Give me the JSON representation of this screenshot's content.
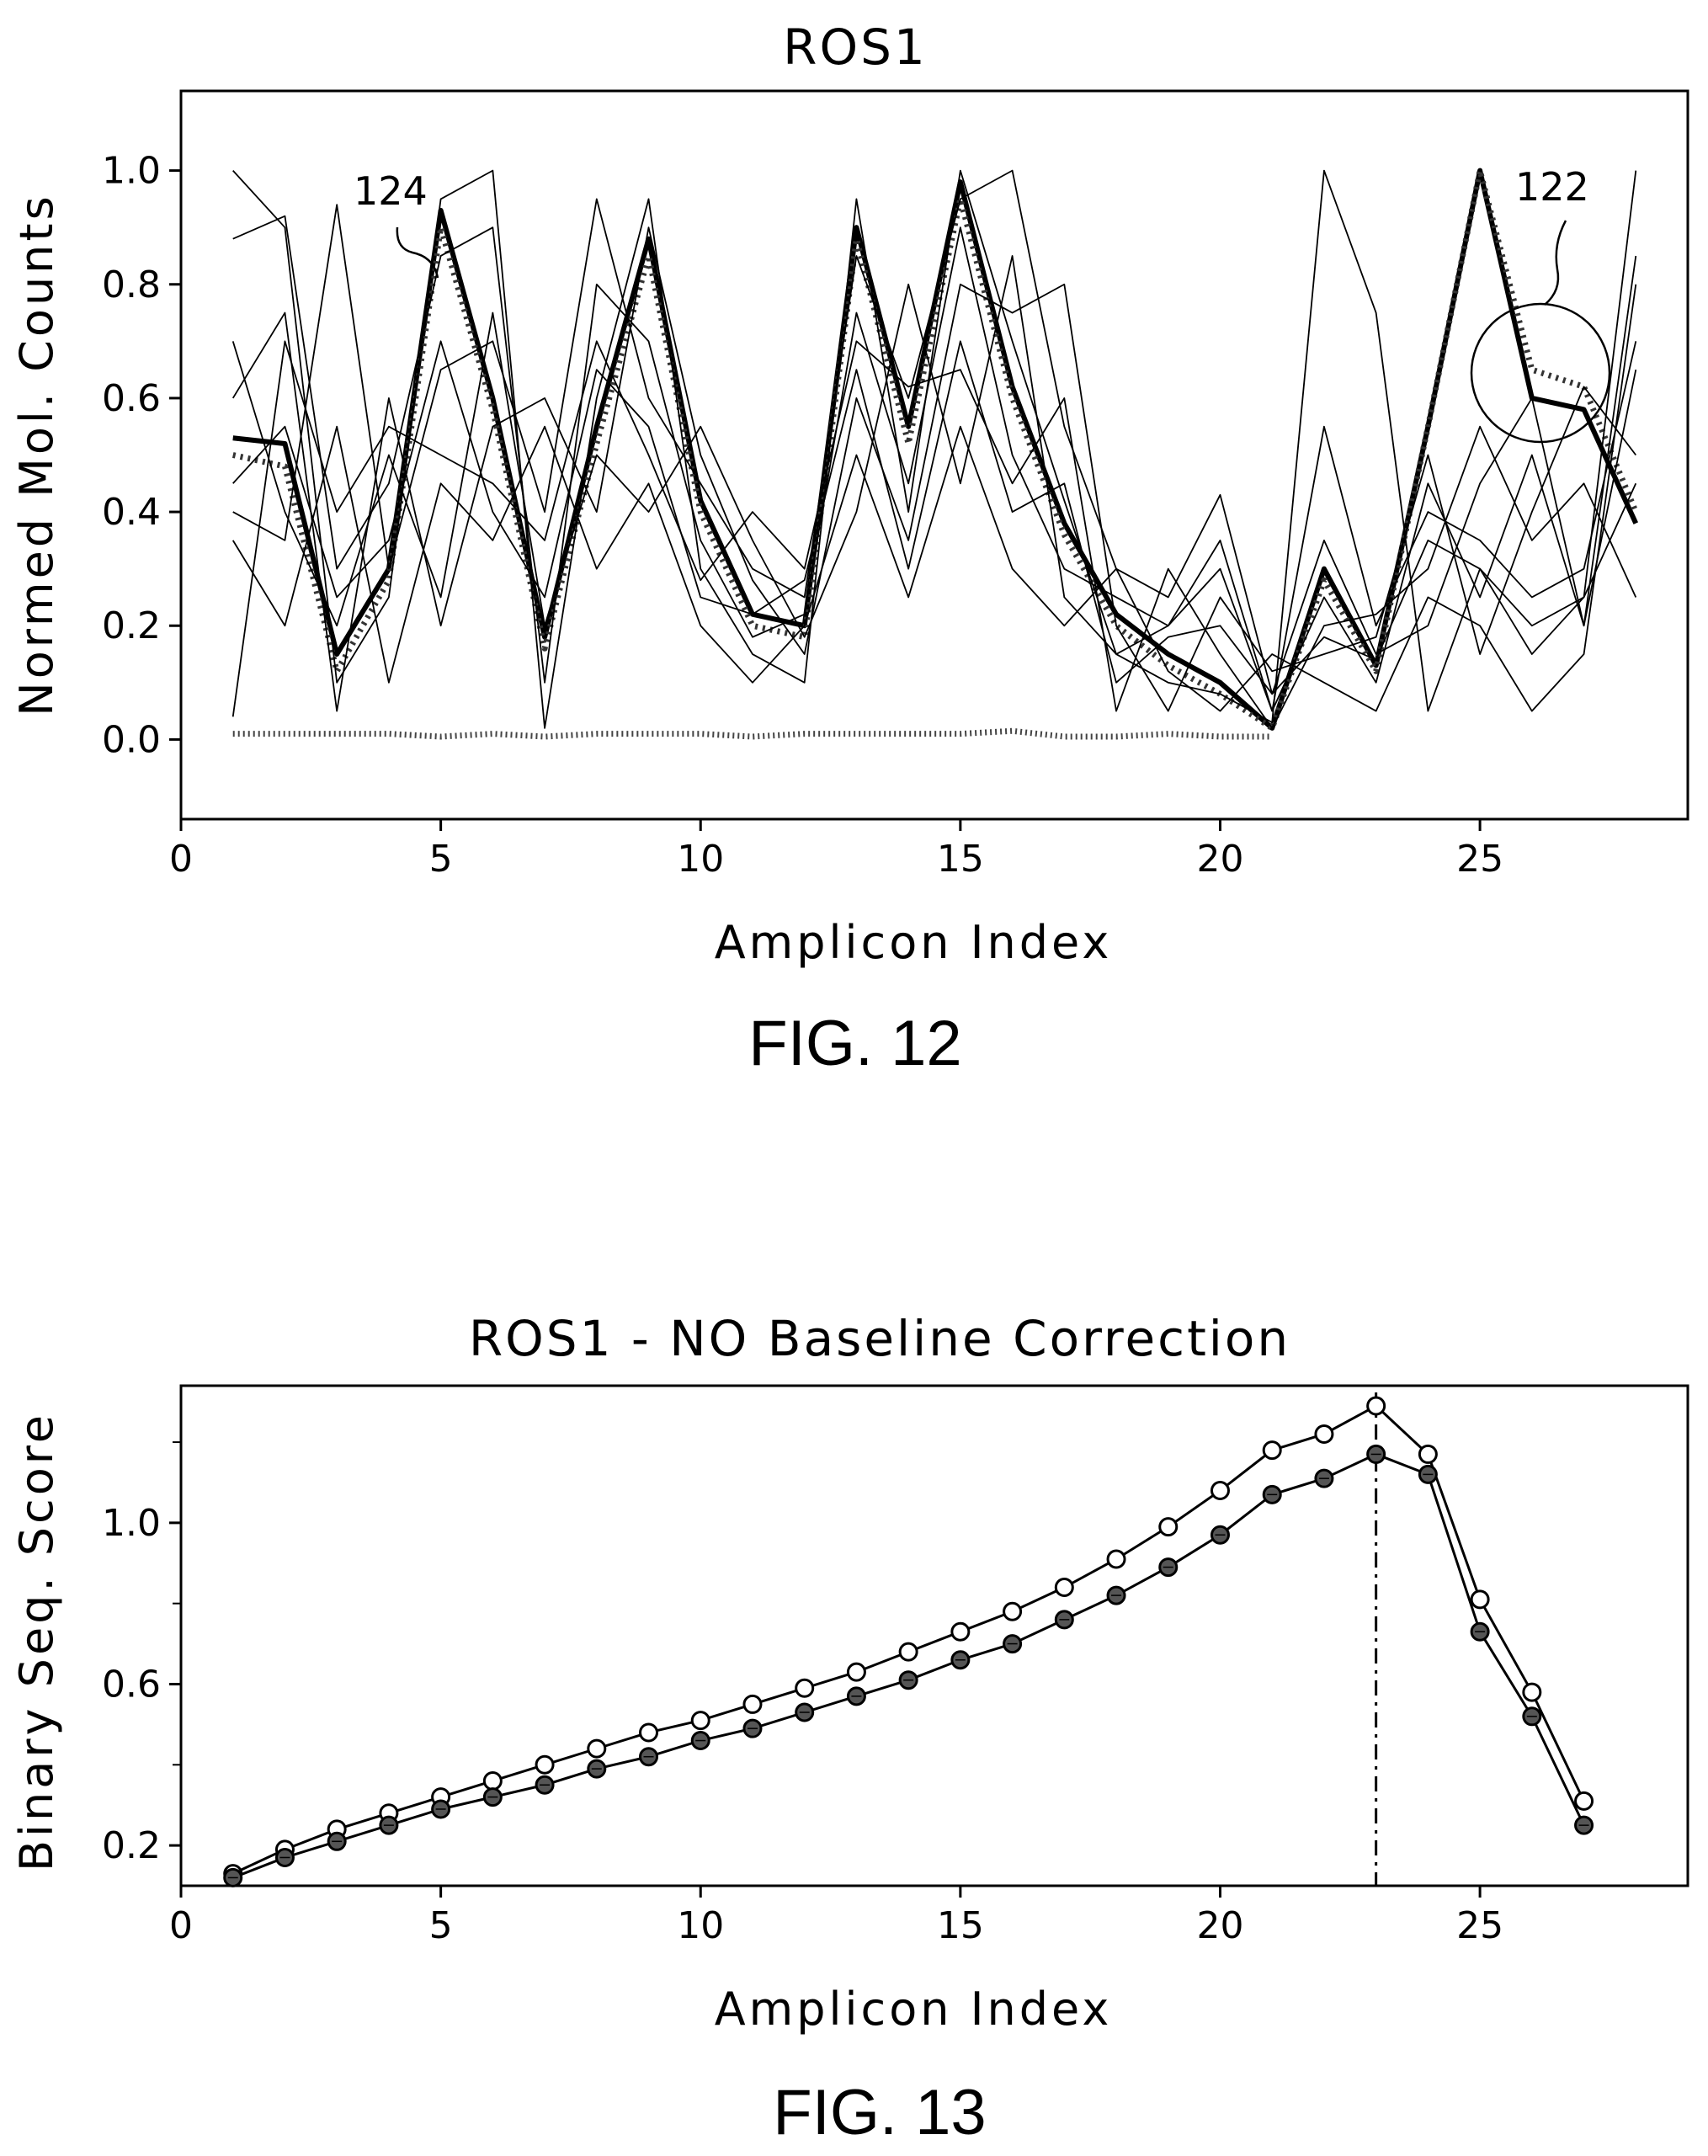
{
  "chart_data": [
    {
      "type": "line",
      "title": "ROS1",
      "xlabel": "Amplicon Index",
      "ylabel": "Normed Mol. Counts",
      "xlim": [
        0,
        29
      ],
      "ylim": [
        -0.14,
        1.14
      ],
      "xticks": [
        0,
        5,
        10,
        15,
        20,
        25
      ],
      "yticks": [
        0.0,
        0.2,
        0.4,
        0.6,
        0.8,
        1.0
      ],
      "grid": false,
      "caption": "FIG. 12",
      "annotations": [
        "124",
        "122"
      ],
      "series": [
        {
          "style": "thick",
          "x": [
            1,
            2,
            3,
            4,
            5,
            6,
            7,
            8,
            9,
            10,
            11,
            12,
            13,
            14,
            15,
            16,
            17,
            18,
            19,
            20,
            21,
            22,
            23,
            24,
            25,
            26,
            27,
            28
          ],
          "values": [
            0.53,
            0.52,
            0.15,
            0.3,
            0.93,
            0.6,
            0.18,
            0.55,
            0.88,
            0.42,
            0.22,
            0.2,
            0.9,
            0.55,
            0.98,
            0.62,
            0.38,
            0.22,
            0.15,
            0.1,
            0.02,
            0.3,
            0.13,
            0.55,
            1.0,
            0.6,
            0.58,
            0.38
          ]
        },
        {
          "style": "dotted",
          "x": [
            1,
            2,
            3,
            4,
            5,
            6,
            7,
            8,
            9,
            10,
            11,
            12,
            13,
            14,
            15,
            16,
            17,
            18,
            19,
            20,
            21,
            22,
            23,
            24,
            25,
            26,
            27,
            28
          ],
          "values": [
            0.5,
            0.48,
            0.12,
            0.28,
            0.9,
            0.58,
            0.16,
            0.52,
            0.85,
            0.4,
            0.2,
            0.18,
            0.88,
            0.52,
            0.95,
            0.6,
            0.36,
            0.2,
            0.13,
            0.08,
            0.02,
            0.28,
            0.12,
            0.55,
            1.0,
            0.65,
            0.62,
            0.4
          ]
        },
        {
          "style": "baseline",
          "x": [
            1,
            2,
            3,
            4,
            5,
            6,
            7,
            8,
            9,
            10,
            11,
            12,
            13,
            14,
            15,
            16,
            17,
            18,
            19,
            20,
            21
          ],
          "values": [
            0.01,
            0.01,
            0.01,
            0.01,
            0.005,
            0.01,
            0.005,
            0.01,
            0.01,
            0.01,
            0.005,
            0.01,
            0.01,
            0.01,
            0.01,
            0.015,
            0.005,
            0.005,
            0.01,
            0.005,
            0.005
          ]
        },
        {
          "style": "thin",
          "x": [
            1,
            2,
            3,
            4,
            5,
            6,
            7,
            8,
            9,
            10,
            11,
            12,
            13,
            14,
            15,
            16,
            17,
            18,
            19,
            20,
            21,
            22,
            23,
            24,
            25,
            26,
            27,
            28
          ],
          "values": [
            1.0,
            0.9,
            0.1,
            0.25,
            0.95,
            1.0,
            0.02,
            0.6,
            0.95,
            0.3,
            0.15,
            0.1,
            0.95,
            0.4,
            1.0,
            0.7,
            0.42,
            0.15,
            0.1,
            0.08,
            0.03,
            1.0,
            0.75,
            0.05,
            0.3,
            0.2,
            0.25,
            1.0
          ]
        },
        {
          "style": "thin",
          "x": [
            1,
            2,
            3,
            4,
            5,
            6,
            7,
            8,
            9,
            10,
            11,
            12,
            13,
            14,
            15,
            16,
            17,
            18,
            19,
            20,
            21,
            22,
            23,
            24,
            25,
            26,
            27,
            28
          ],
          "values": [
            0.88,
            0.92,
            0.3,
            0.45,
            0.85,
            0.9,
            0.1,
            0.8,
            0.7,
            0.35,
            0.18,
            0.22,
            0.75,
            0.45,
            0.9,
            0.5,
            0.3,
            0.25,
            0.2,
            0.3,
            0.05,
            0.55,
            0.2,
            0.4,
            0.35,
            0.25,
            0.3,
            0.7
          ]
        },
        {
          "style": "thin",
          "x": [
            1,
            2,
            3,
            4,
            5,
            6,
            7,
            8,
            9,
            10,
            11,
            12,
            13,
            14,
            15,
            16,
            17,
            18,
            19,
            20,
            21,
            22,
            23,
            24,
            25,
            26,
            27,
            28
          ],
          "values": [
            0.4,
            0.35,
            0.94,
            0.3,
            0.65,
            0.7,
            0.4,
            0.95,
            0.6,
            0.45,
            0.3,
            0.25,
            0.85,
            0.6,
            0.95,
            1.0,
            0.55,
            0.3,
            0.25,
            0.43,
            0.08,
            0.35,
            0.15,
            0.2,
            0.45,
            0.6,
            0.2,
            0.65
          ]
        },
        {
          "style": "thin",
          "x": [
            1,
            2,
            3,
            4,
            5,
            6,
            7,
            8,
            9,
            10,
            11,
            12,
            13,
            14,
            15,
            16,
            17,
            18,
            19,
            20,
            21,
            22,
            23,
            24,
            25,
            26,
            27,
            28
          ],
          "values": [
            0.6,
            0.75,
            0.05,
            0.6,
            0.2,
            0.55,
            0.6,
            0.4,
            0.9,
            0.5,
            0.28,
            0.15,
            0.6,
            0.35,
            0.8,
            0.75,
            0.8,
            0.2,
            0.05,
            0.25,
            0.12,
            0.15,
            0.18,
            0.5,
            0.15,
            0.4,
            0.62,
            0.5
          ]
        },
        {
          "style": "thin",
          "x": [
            1,
            2,
            3,
            4,
            5,
            6,
            7,
            8,
            9,
            10,
            11,
            12,
            13,
            14,
            15,
            16,
            17,
            18,
            19,
            20,
            21,
            22,
            23,
            24,
            25,
            26,
            27,
            28
          ],
          "values": [
            0.04,
            0.7,
            0.4,
            0.55,
            0.5,
            0.45,
            0.35,
            0.7,
            0.5,
            0.28,
            0.4,
            0.3,
            0.7,
            0.62,
            0.65,
            0.45,
            0.6,
            0.05,
            0.3,
            0.15,
            0.02,
            0.2,
            0.22,
            0.3,
            0.55,
            0.35,
            0.45,
            0.25
          ]
        },
        {
          "style": "thin",
          "x": [
            1,
            2,
            3,
            4,
            5,
            6,
            7,
            8,
            9,
            10,
            11,
            12,
            13,
            14,
            15,
            16,
            17,
            18,
            19,
            20,
            21,
            22,
            23,
            24,
            25,
            26,
            27,
            28
          ],
          "values": [
            0.35,
            0.2,
            0.55,
            0.1,
            0.45,
            0.35,
            0.55,
            0.3,
            0.45,
            0.2,
            0.1,
            0.2,
            0.5,
            0.25,
            0.55,
            0.3,
            0.2,
            0.3,
            0.12,
            0.05,
            0.15,
            0.1,
            0.05,
            0.25,
            0.2,
            0.05,
            0.15,
            0.8
          ]
        },
        {
          "style": "thin",
          "x": [
            1,
            2,
            3,
            4,
            5,
            6,
            7,
            8,
            9,
            10,
            11,
            12,
            13,
            14,
            15,
            16,
            17,
            18,
            19,
            20,
            21,
            22,
            23,
            24,
            25,
            26,
            27,
            28
          ],
          "values": [
            0.7,
            0.4,
            0.2,
            0.5,
            0.25,
            0.75,
            0.2,
            0.5,
            0.4,
            0.55,
            0.35,
            0.18,
            0.4,
            0.8,
            0.45,
            0.85,
            0.25,
            0.15,
            0.2,
            0.35,
            0.05,
            0.25,
            0.1,
            0.45,
            0.25,
            0.5,
            0.2,
            0.85
          ]
        },
        {
          "style": "thin",
          "x": [
            1,
            2,
            3,
            4,
            5,
            6,
            7,
            8,
            9,
            10,
            11,
            12,
            13,
            14,
            15,
            16,
            17,
            18,
            19,
            20,
            21,
            22,
            23,
            24,
            25,
            26,
            27,
            28
          ],
          "values": [
            0.45,
            0.55,
            0.25,
            0.35,
            0.7,
            0.4,
            0.25,
            0.65,
            0.55,
            0.25,
            0.22,
            0.28,
            0.65,
            0.3,
            0.7,
            0.4,
            0.45,
            0.1,
            0.18,
            0.2,
            0.08,
            0.18,
            0.14,
            0.35,
            0.3,
            0.15,
            0.25,
            0.45
          ]
        }
      ]
    },
    {
      "type": "line",
      "title": "ROS1 - NO Baseline Correction",
      "xlabel": "Amplicon Index",
      "ylabel": "Binary Seq. Score",
      "xlim": [
        0,
        29
      ],
      "ylim": [
        0.1,
        1.34
      ],
      "xticks": [
        0,
        5,
        10,
        15,
        20,
        25
      ],
      "yticks": [
        0.2,
        0.6,
        1.0
      ],
      "grid": false,
      "caption": "FIG. 13",
      "vline_x": 23,
      "x": [
        1,
        2,
        3,
        4,
        5,
        6,
        7,
        8,
        9,
        10,
        11,
        12,
        13,
        14,
        15,
        16,
        17,
        18,
        19,
        20,
        21,
        22,
        23,
        24,
        25,
        26,
        27
      ],
      "series": [
        {
          "marker": "open",
          "values": [
            0.13,
            0.19,
            0.24,
            0.28,
            0.32,
            0.36,
            0.4,
            0.44,
            0.48,
            0.51,
            0.55,
            0.59,
            0.63,
            0.68,
            0.73,
            0.78,
            0.84,
            0.91,
            0.99,
            1.08,
            1.18,
            1.22,
            1.29,
            1.17,
            0.81,
            0.58,
            0.31
          ]
        },
        {
          "marker": "filled",
          "values": [
            0.12,
            0.17,
            0.21,
            0.25,
            0.29,
            0.32,
            0.35,
            0.39,
            0.42,
            0.46,
            0.49,
            0.53,
            0.57,
            0.61,
            0.66,
            0.7,
            0.76,
            0.82,
            0.89,
            0.97,
            1.07,
            1.11,
            1.17,
            1.12,
            0.73,
            0.52,
            0.25
          ]
        }
      ]
    }
  ]
}
